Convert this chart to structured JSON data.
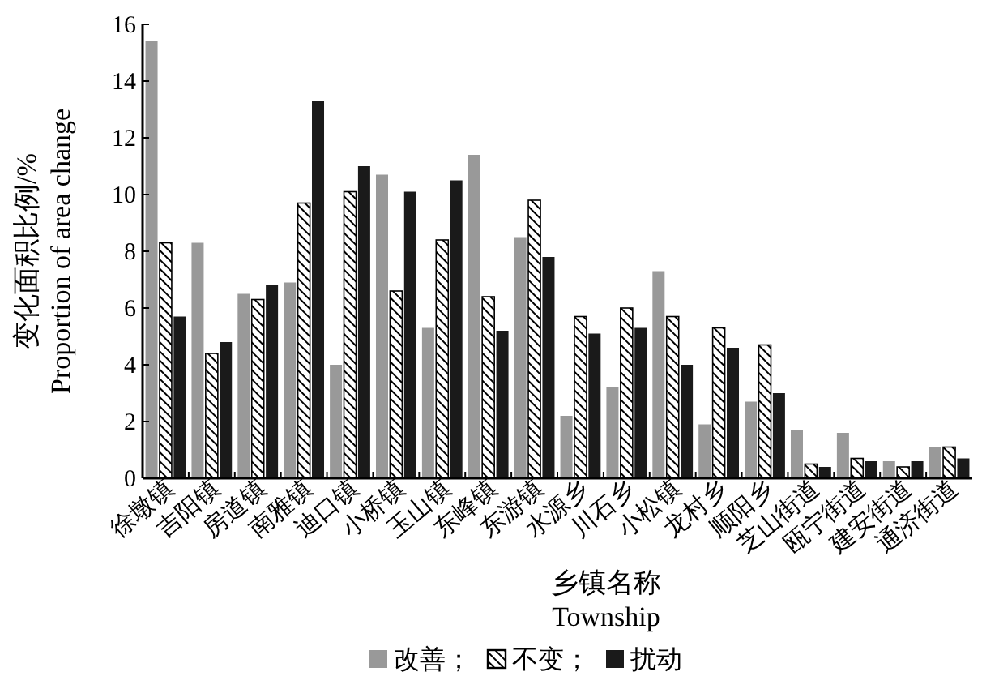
{
  "chart_data": {
    "type": "bar",
    "xlabel": "乡镇名称\nTownship",
    "ylabel": "变化面积比例/%\nProportion of area change",
    "categories": [
      "徐墩镇",
      "吉阳镇",
      "房道镇",
      "南雅镇",
      "迪口镇",
      "小桥镇",
      "玉山镇",
      "东峰镇",
      "东游镇",
      "水源乡",
      "川石乡",
      "小松镇",
      "龙村乡",
      "顺阳乡",
      "芝山街道",
      "瓯宁街道",
      "建安街道",
      "通济街道"
    ],
    "series": [
      {
        "name": "改善；",
        "color": "#999999",
        "values": [
          15.4,
          8.3,
          6.5,
          6.9,
          4.0,
          10.7,
          5.3,
          11.4,
          8.5,
          2.2,
          3.2,
          7.3,
          1.9,
          2.7,
          1.7,
          1.6,
          0.6,
          1.1
        ]
      },
      {
        "name": "不变；",
        "color": "#000000",
        "values": [
          8.3,
          4.4,
          6.3,
          9.7,
          10.1,
          6.6,
          8.4,
          6.4,
          9.8,
          5.7,
          6.0,
          5.7,
          5.3,
          4.7,
          0.5,
          0.7,
          0.4,
          1.1
        ]
      },
      {
        "name": "扰动",
        "color": "#1a1a1a",
        "values": [
          5.7,
          4.8,
          6.8,
          13.3,
          11.0,
          10.1,
          10.5,
          5.2,
          7.8,
          5.1,
          5.3,
          4.0,
          4.6,
          3.0,
          0.4,
          0.6,
          0.6,
          0.7
        ]
      }
    ],
    "ylim": [
      0,
      16
    ],
    "yticks": [
      0,
      2,
      4,
      6,
      8,
      10,
      12,
      14,
      16
    ],
    "grid": false,
    "legend": "bottom"
  }
}
